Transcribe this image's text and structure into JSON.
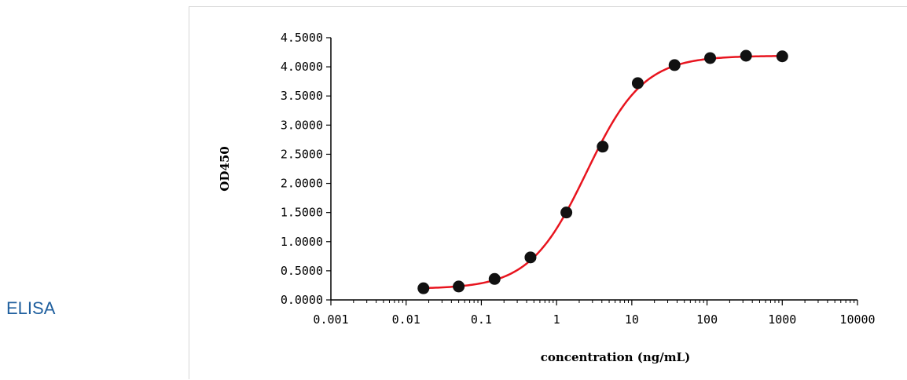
{
  "side_label": "ELISA",
  "colors": {
    "curve": "#e8141e",
    "points": "#111111",
    "axis": "#000000",
    "label": "#1f5f9e"
  },
  "chart_data": {
    "type": "scatter",
    "xscale": "log",
    "xlim": [
      0.001,
      10000
    ],
    "ylim": [
      0,
      4.5
    ],
    "xticks": [
      0.001,
      0.01,
      0.1,
      1,
      10,
      100,
      1000,
      10000
    ],
    "xtick_labels": [
      "0.001",
      "0.01",
      "0.1",
      "1",
      "10",
      "100",
      "1000",
      "10000"
    ],
    "yticks": [
      0,
      0.5,
      1,
      1.5,
      2,
      2.5,
      3,
      3.5,
      4,
      4.5
    ],
    "ytick_labels": [
      "0.0000",
      "0.5000",
      "1.0000",
      "1.5000",
      "2.0000",
      "2.5000",
      "3.0000",
      "3.5000",
      "4.0000",
      "4.5000"
    ],
    "xlabel": "concentration (ng/mL)",
    "ylabel": "OD450",
    "grid": false,
    "series": [
      {
        "x": [
          0.017,
          0.05,
          0.15,
          0.45,
          1.35,
          4.1,
          12,
          37,
          110,
          330,
          1000
        ],
        "y": [
          0.2,
          0.23,
          0.36,
          0.73,
          1.5,
          2.63,
          3.72,
          4.03,
          4.15,
          4.19,
          4.18
        ]
      }
    ],
    "fit": {
      "model": "4PL",
      "bottom": 0.19,
      "top": 4.19,
      "ec50": 2.5,
      "hill": 1.15
    }
  }
}
